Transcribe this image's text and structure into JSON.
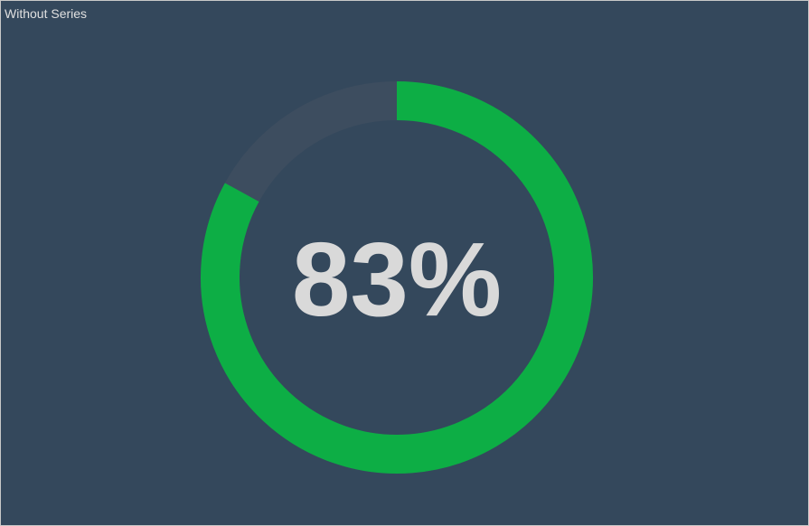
{
  "title": "Without Series",
  "chart_data": {
    "type": "radial-gauge",
    "value": 83,
    "max": 100,
    "label": "83%",
    "colors": {
      "background": "#34485c",
      "track": "#3d4d5f",
      "fill": "#0dae45",
      "label": "#d9d9d9"
    }
  }
}
